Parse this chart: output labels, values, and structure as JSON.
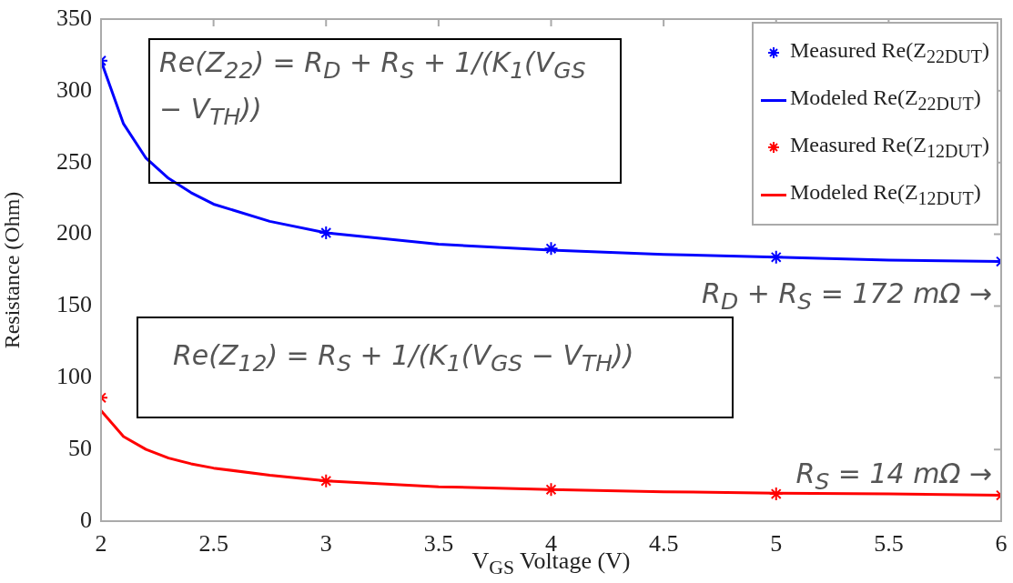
{
  "chart_data": {
    "type": "line",
    "xlabel": "V$_{GS}$ Voltage (V)",
    "ylabel": "Resistance (Ohm)",
    "xlim": [
      2,
      6
    ],
    "xticks": [
      2,
      2.5,
      3,
      3.5,
      4,
      4.5,
      5,
      5.5,
      6
    ],
    "ylim": [
      0,
      350
    ],
    "yticks": [
      0,
      50,
      100,
      150,
      200,
      250,
      300,
      350
    ],
    "grid": false,
    "legend": "top right",
    "annotations": [
      "Re(Z$_{22}$) = R$_{D}$ + R$_{S}$ + 1/(K$_{1}$(V$_{GS}$ − V$_{TH}$))",
      "R$_{D}$ + R$_{S}$ = 172 mΩ →",
      "Re(Z$_{12}$) = R$_{S}$ + 1/(K$_{1}$(V$_{GS}$ − V$_{TH}$))",
      "R$_{S}$ = 14 mΩ →"
    ],
    "series": [
      {
        "name": "Measured Re(Z$_{22DUT}$)",
        "type": "scatter",
        "marker": "cross",
        "color": "#0000ff",
        "x": [
          2,
          3,
          4,
          5,
          6
        ],
        "values": [
          321,
          201,
          190,
          184,
          181
        ]
      },
      {
        "name": "Modeled Re(Z$_{22DUT}$)",
        "type": "line",
        "marker": "none",
        "color": "#0000ff",
        "x": [
          2,
          2.1,
          2.2,
          2.3,
          2.4,
          2.5,
          2.75,
          3,
          3.5,
          4,
          4.5,
          5,
          5.5,
          6
        ],
        "values": [
          321,
          277,
          253,
          239,
          229,
          221,
          209,
          201,
          193,
          189,
          186,
          184,
          182,
          181
        ]
      },
      {
        "name": "Measured Re(Z$_{12DUT}$)",
        "type": "scatter",
        "marker": "cross",
        "color": "#ff0000",
        "x": [
          2,
          3,
          4,
          5,
          6
        ],
        "values": [
          86,
          28,
          22,
          19,
          18
        ]
      },
      {
        "name": "Modeled Re(Z$_{12DUT}$)",
        "type": "line",
        "marker": "none",
        "color": "#ff0000",
        "x": [
          2,
          2.1,
          2.2,
          2.3,
          2.4,
          2.5,
          2.75,
          3,
          3.5,
          4,
          4.5,
          5,
          5.5,
          6
        ],
        "values": [
          77,
          59,
          50,
          44,
          40,
          37,
          32,
          28,
          24,
          22,
          20.5,
          19.5,
          19,
          18
        ]
      }
    ]
  }
}
